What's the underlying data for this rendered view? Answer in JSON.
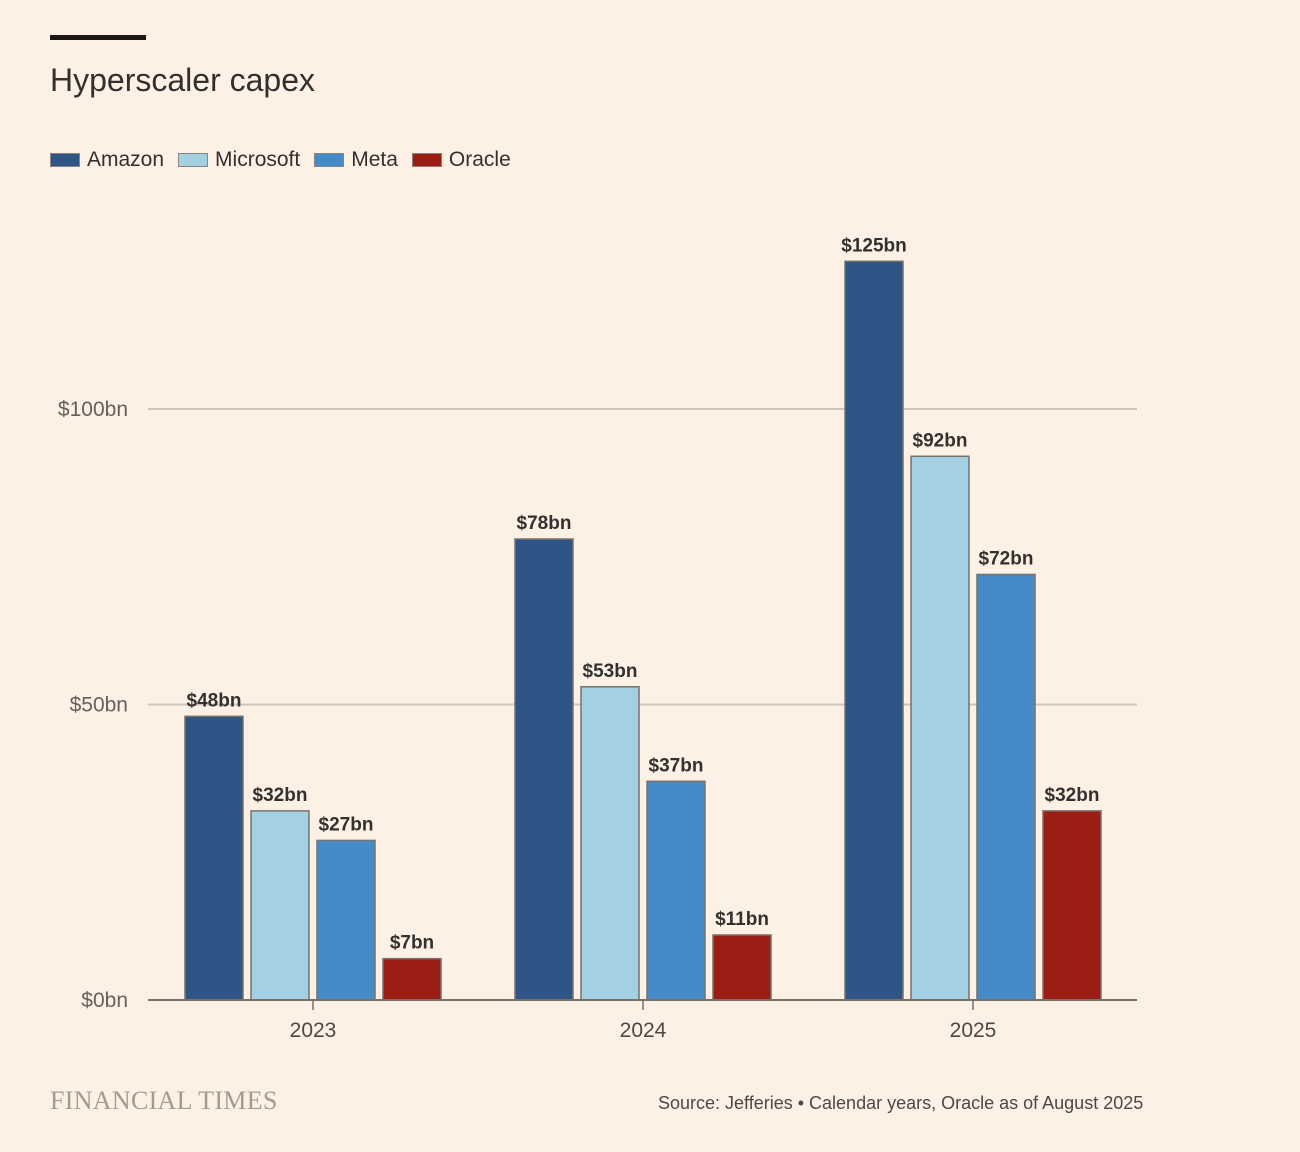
{
  "chart_data": {
    "type": "bar",
    "title": "Hyperscaler capex",
    "categories": [
      "2023",
      "2024",
      "2025"
    ],
    "series": [
      {
        "name": "Amazon",
        "color": "#2f5486",
        "values": [
          48,
          78,
          125
        ],
        "labels": [
          "$48bn",
          "$78bn",
          "$125bn"
        ]
      },
      {
        "name": "Microsoft",
        "color": "#a3d0e3",
        "values": [
          32,
          53,
          92
        ],
        "labels": [
          "$32bn",
          "$53bn",
          "$92bn"
        ]
      },
      {
        "name": "Meta",
        "color": "#448bc8",
        "values": [
          27,
          37,
          72
        ],
        "labels": [
          "$27bn",
          "$37bn",
          "$72bn"
        ]
      },
      {
        "name": "Oracle",
        "color": "#9b1d14",
        "values": [
          7,
          11,
          32
        ],
        "labels": [
          "$7bn",
          "$11bn",
          "$32bn"
        ]
      }
    ],
    "yticks": [
      0,
      50,
      100
    ],
    "ytick_labels": [
      "$0bn",
      "$50bn",
      "$100bn"
    ],
    "ylim": [
      0,
      125
    ],
    "xlabel": "",
    "ylabel": "",
    "grid": true,
    "legend": "top-left"
  },
  "footer": {
    "brand": "FINANCIAL TIMES",
    "source": "Source: Jefferies • Calendar years, Oracle as of August 2025"
  }
}
